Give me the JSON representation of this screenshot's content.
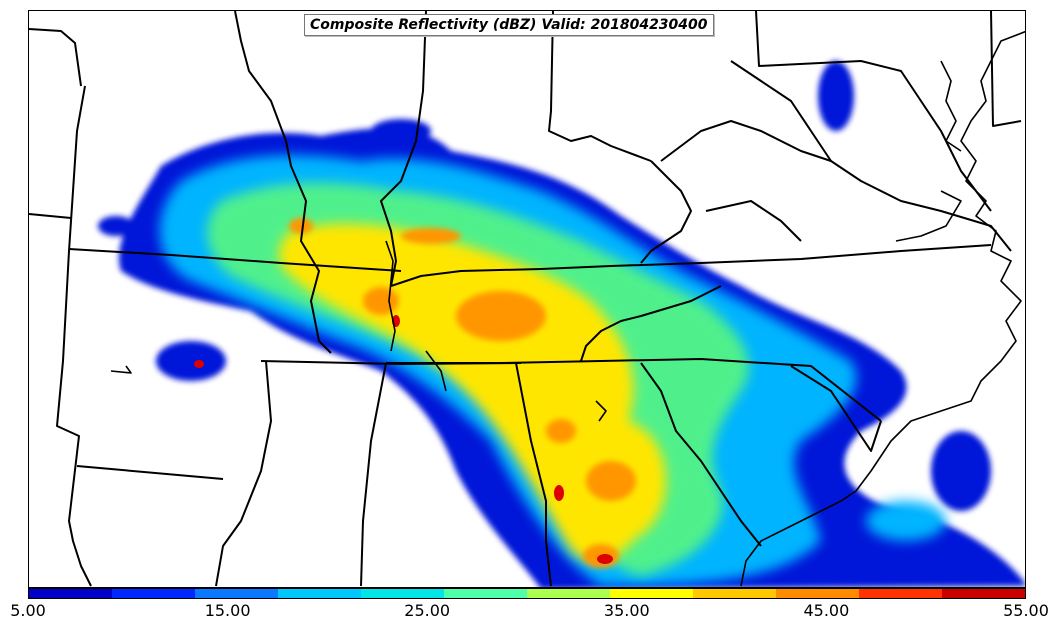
{
  "title": "Composite Reflectivity (dBZ) Valid: 201804230400",
  "colorbar": {
    "min": 5.0,
    "max": 55.0,
    "tick_labels": [
      "5.00",
      "15.00",
      "25.00",
      "35.00",
      "45.00",
      "55.00"
    ],
    "colors": [
      "#0000c8",
      "#0028ff",
      "#0a78ff",
      "#00c8ff",
      "#00e6e6",
      "#50ffaa",
      "#aaff50",
      "#ffff00",
      "#ffc800",
      "#ff8c00",
      "#ff3200",
      "#c80000"
    ]
  },
  "map_features": [
    "state-borders",
    "coastline",
    "reflectivity-field"
  ]
}
